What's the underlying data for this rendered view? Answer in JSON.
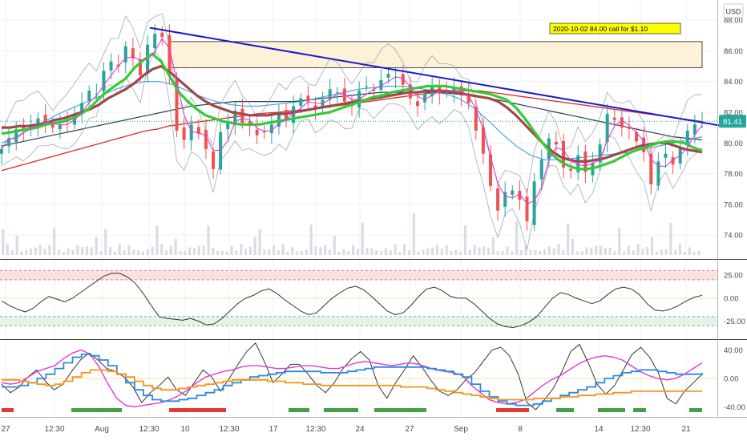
{
  "currency_button": "USD",
  "annotation": "2020-10-02  84.00 call for $1.10",
  "price_badge": "81.41",
  "colors": {
    "grid": "#eef1f6",
    "axis_text": "#4a4a4a",
    "trendline": "#1a1acc",
    "zone_fill": "#fdf1d8",
    "zone_stroke": "#1f1f1f",
    "annotation_bg": "#ffff00",
    "badge_bg": "#26a69a",
    "up_candle": "#26a69a",
    "down_candle": "#ef5350",
    "ma_green": "#33cc33",
    "ma_maroon": "#a0474a",
    "ma_red": "#d42a2a",
    "ma_navy": "#2c3e50",
    "ma_blue": "#3aa3e3",
    "ma_magenta": "#e03ad6",
    "volume": "#d9dde3",
    "cci_line": "#333333",
    "cci_overbought": "#fde0e0",
    "cci_oversold": "#e3f4e6",
    "osc_black": "#222222",
    "osc_magenta": "#e03ad6",
    "osc_blue": "#2a8ae0",
    "osc_orange": "#f7931a",
    "signal_green": "#43a047",
    "signal_red": "#e53935"
  },
  "chart_data": [
    {
      "type": "candlestick",
      "panel": "price",
      "y_ticks": [
        "88.00",
        "86.00",
        "84.00",
        "82.00",
        "80.00",
        "78.00",
        "76.00",
        "74.00"
      ],
      "ylim": [
        72.6,
        89.1
      ],
      "grid": true,
      "x_ticks": [
        "27",
        "12:30",
        "Aug",
        "12:30",
        "10",
        "12:30",
        "17",
        "12:30",
        "24",
        "27",
        "Sep",
        "8",
        "14",
        "12:30",
        "21"
      ],
      "close_series": [
        79.6,
        80.3,
        80.9,
        80.8,
        81.2,
        81.6,
        81.3,
        81.0,
        81.2,
        81.4,
        81.9,
        82.6,
        83.4,
        83.2,
        84.7,
        85.3,
        85.0,
        86.3,
        85.5,
        84.4,
        86.4,
        87.1,
        86.9,
        84.5,
        80.8,
        80.2,
        81.2,
        80.6,
        79.6,
        78.3,
        80.7,
        81.4,
        82.1,
        81.3,
        81.1,
        80.5,
        80.7,
        81.2,
        81.9,
        81.5,
        82.4,
        82.9,
        82.7,
        82.2,
        82.8,
        83.5,
        83.3,
        82.7,
        82.4,
        83.4,
        83.7,
        83.4,
        84.1,
        84.5,
        84.3,
        83.8,
        82.9,
        82.4,
        83.2,
        83.7,
        83.2,
        83.4,
        83.6,
        83.1,
        82.6,
        80.8,
        79.3,
        77.2,
        75.6,
        76.8,
        76.9,
        76.3,
        74.9,
        77.5,
        78.9,
        80.3,
        79.9,
        78.4,
        78.2,
        79.2,
        78.1,
        78.7,
        79.9,
        81.9,
        81.5,
        81.0,
        80.9,
        80.1,
        79.4,
        77.3,
        78.8,
        79.3,
        78.6,
        79.7,
        80.8,
        81.2,
        81.41
      ],
      "moving_averages": {
        "green": [
          80.6,
          80.7,
          80.8,
          80.9,
          81.0,
          81.2,
          81.3,
          81.4,
          81.6,
          81.9,
          82.3,
          82.9,
          83.4,
          83.8,
          84.2,
          84.9,
          85.4,
          85.8,
          85.3,
          84.3,
          83.3,
          82.7,
          82.2,
          81.8,
          81.6,
          81.4,
          81.3,
          81.2,
          81.2,
          81.2,
          81.3,
          81.4,
          81.5,
          81.6,
          81.7,
          81.8,
          81.9,
          82.0,
          82.2,
          82.4,
          82.6,
          82.8,
          83.0,
          83.1,
          83.3,
          83.4,
          83.5,
          83.6,
          83.7,
          83.7,
          83.7,
          83.6,
          83.5,
          83.4,
          83.3,
          83.2,
          83.0,
          82.8,
          82.3,
          81.6,
          80.8,
          80.0,
          79.3,
          78.8,
          78.5,
          78.3,
          78.3,
          78.4,
          78.6,
          78.8,
          79.1,
          79.4,
          79.6,
          79.8,
          80.0,
          80.1,
          80.1,
          80.0,
          79.7,
          79.5
        ],
        "maroon": [
          81.0,
          81.0,
          81.1,
          81.1,
          81.2,
          81.3,
          81.5,
          81.6,
          81.8,
          82.0,
          82.2,
          82.5,
          82.9,
          83.2,
          83.5,
          83.9,
          84.4,
          84.8,
          85.0,
          84.6,
          84.1,
          83.6,
          83.1,
          82.7,
          82.4,
          82.2,
          82.0,
          81.9,
          81.8,
          81.8,
          81.8,
          81.9,
          81.9,
          82.0,
          82.1,
          82.2,
          82.3,
          82.4,
          82.5,
          82.6,
          82.7,
          82.8,
          82.9,
          83.0,
          83.1,
          83.2,
          83.3,
          83.3,
          83.4,
          83.4,
          83.4,
          83.3,
          83.2,
          83.1,
          83.0,
          82.9,
          82.7,
          82.3,
          81.8,
          81.2,
          80.6,
          80.0,
          79.5,
          79.1,
          78.9,
          78.8,
          78.8,
          78.9,
          79.0,
          79.2,
          79.4,
          79.6,
          79.8,
          79.9,
          80.0,
          80.0,
          79.8,
          79.6,
          79.5,
          79.4
        ],
        "red": [
          78.2,
          78.4,
          78.6,
          78.8,
          79.0,
          79.2,
          79.4,
          79.6,
          79.8,
          80.0,
          80.2,
          80.4,
          80.6,
          80.8,
          80.9,
          81.1,
          81.2,
          81.3,
          81.4,
          81.5,
          81.6,
          81.7,
          81.8,
          81.9,
          81.95,
          82.0,
          82.1,
          82.15,
          82.2,
          82.3,
          82.4,
          82.5,
          82.6,
          82.7,
          82.8,
          82.9,
          83.0,
          83.1,
          83.2,
          83.3,
          83.35,
          83.4,
          83.4,
          83.4,
          83.3,
          83.2,
          83.1,
          83.0,
          82.9,
          82.8,
          82.7,
          82.6,
          82.5,
          82.4,
          82.3,
          82.2,
          82.1,
          82.0,
          81.9,
          81.8,
          81.7,
          81.6,
          81.5,
          81.4
        ],
        "navy": [
          79.8,
          80.0,
          80.2,
          80.4,
          80.6,
          80.8,
          81.0,
          81.2,
          81.4,
          81.6,
          81.8,
          82.0,
          82.2,
          82.4,
          82.5,
          82.6,
          82.7,
          82.7,
          82.7,
          82.7,
          82.7,
          82.8,
          82.9,
          83.0,
          83.1,
          83.2,
          83.3,
          83.3,
          83.3,
          83.3,
          83.3,
          83.2,
          83.1,
          83.0,
          82.8,
          82.6,
          82.4,
          82.2,
          82.0,
          81.8,
          81.6,
          81.4,
          81.2,
          81.0,
          80.8,
          80.6,
          80.4,
          80.3,
          80.2
        ],
        "blue": [
          80.0,
          80.4,
          80.9,
          81.4,
          81.9,
          82.3,
          82.7,
          83.1,
          83.5,
          83.8,
          84.0,
          84.0,
          83.8,
          83.4,
          83.0,
          82.7,
          82.5,
          82.4,
          82.4,
          82.5,
          82.6,
          82.7,
          82.9,
          83.1,
          83.3,
          83.5,
          83.6,
          83.7,
          83.7,
          83.6,
          83.4,
          83.2,
          82.9,
          82.3,
          81.5,
          80.6,
          79.8,
          79.2,
          78.9,
          78.9,
          79.0,
          79.1,
          79.2,
          79.3,
          79.4,
          79.6,
          79.8,
          80.0,
          80.2,
          80.4
        ]
      },
      "trendline": [
        {
          "x": "Aug 5",
          "y": 87.5
        },
        {
          "x": "Sep 22",
          "y": 81.1
        }
      ],
      "resistance_zone": [
        84.9,
        86.6
      ],
      "current_price": 81.41
    },
    {
      "type": "line",
      "panel": "cci",
      "y_ticks": [
        "25.00",
        "0.00",
        "-25.00"
      ],
      "ylim": [
        -42,
        40
      ],
      "bands": {
        "overbought": [
          20,
          30
        ],
        "oversold": [
          -30,
          -20
        ]
      },
      "values": [
        -3,
        -8,
        -12,
        -15,
        -11,
        -4,
        2,
        -1,
        -4,
        0,
        6,
        12,
        18,
        24,
        27,
        27,
        23,
        16,
        5,
        -8,
        -20,
        -22,
        -23,
        -24,
        -22,
        -25,
        -29,
        -28,
        -22,
        -14,
        -6,
        0,
        3,
        8,
        10,
        5,
        -2,
        -8,
        -14,
        -18,
        -16,
        -8,
        0,
        6,
        11,
        13,
        9,
        2,
        -6,
        -14,
        -18,
        -16,
        -8,
        2,
        10,
        12,
        8,
        2,
        0,
        0,
        -6,
        -14,
        -22,
        -28,
        -31,
        -32,
        -30,
        -26,
        -20,
        -10,
        0,
        6,
        4,
        0,
        -3,
        -6,
        -3,
        4,
        10,
        12,
        10,
        4,
        -6,
        -13,
        -14,
        -12,
        -8,
        -3,
        1,
        3
      ]
    },
    {
      "type": "line",
      "panel": "oscillators",
      "y_ticks": [
        "40.00",
        "0.00",
        "-40.00"
      ],
      "ylim": [
        -52,
        52
      ],
      "series": [
        {
          "key": "black",
          "values": [
            -8,
            -20,
            -12,
            2,
            12,
            -4,
            -16,
            -8,
            10,
            26,
            36,
            26,
            14,
            10,
            2,
            -12,
            -34,
            -20,
            -10,
            2,
            -16,
            -24,
            -6,
            12,
            2,
            -18,
            0,
            20,
            38,
            50,
            24,
            -6,
            6,
            20,
            20,
            6,
            -10,
            -20,
            -6,
            14,
            28,
            38,
            26,
            -10,
            -28,
            -6,
            12,
            32,
            16,
            -2,
            -18,
            -24,
            -16,
            -2,
            8,
            24,
            40,
            44,
            32,
            6,
            -34,
            -44,
            -30,
            -14,
            10,
            38,
            48,
            22,
            -8,
            -22,
            -10,
            12,
            34,
            44,
            30,
            8,
            -28,
            -36,
            -18,
            -6,
            6
          ]
        },
        {
          "key": "magenta",
          "values": [
            -6,
            -8,
            -6,
            2,
            10,
            14,
            18,
            28,
            36,
            40,
            34,
            16,
            -8,
            -28,
            -38,
            -40,
            -38,
            -36,
            -34,
            -30,
            -24,
            -16,
            -6,
            2,
            6,
            10,
            12,
            16,
            18,
            18,
            16,
            14,
            14,
            16,
            18,
            18,
            16,
            14,
            14,
            18,
            22,
            24,
            22,
            20,
            18,
            20,
            22,
            20,
            16,
            12,
            10,
            8,
            4,
            -10,
            -20,
            -30,
            -34,
            -36,
            -34,
            -30,
            -20,
            -10,
            -2,
            4,
            12,
            20,
            26,
            30,
            32,
            30,
            26,
            18,
            10,
            4,
            0,
            -2,
            0,
            6,
            14,
            22
          ]
        },
        {
          "key": "blue",
          "values": [
            -12,
            -12,
            -10,
            -6,
            0,
            6,
            14,
            22,
            30,
            34,
            32,
            26,
            18,
            6,
            -6,
            -16,
            -24,
            -30,
            -32,
            -32,
            -30,
            -28,
            -24,
            -20,
            -16,
            -10,
            -6,
            -2,
            2,
            4,
            6,
            8,
            10,
            10,
            10,
            10,
            8,
            8,
            8,
            10,
            12,
            14,
            16,
            16,
            16,
            16,
            16,
            16,
            14,
            12,
            10,
            6,
            2,
            -8,
            -18,
            -26,
            -32,
            -36,
            -38,
            -38,
            -36,
            -32,
            -28,
            -24,
            -20,
            -16,
            -12,
            -6,
            0,
            4,
            8,
            10,
            12,
            12,
            10,
            8,
            6,
            6,
            6,
            8
          ]
        },
        {
          "key": "orange",
          "values": [
            -2,
            -2,
            -4,
            -6,
            -8,
            -10,
            -8,
            -4,
            2,
            8,
            12,
            12,
            10,
            6,
            2,
            -4,
            -10,
            -14,
            -16,
            -16,
            -14,
            -12,
            -10,
            -8,
            -6,
            -4,
            -2,
            -2,
            -2,
            -2,
            -4,
            -4,
            -6,
            -6,
            -8,
            -8,
            -10,
            -10,
            -10,
            -10,
            -10,
            -10,
            -10,
            -10,
            -10,
            -12,
            -12,
            -12,
            -14,
            -16,
            -18,
            -20,
            -22,
            -24,
            -26,
            -28,
            -30,
            -30,
            -30,
            -30,
            -28,
            -28,
            -28,
            -26,
            -26,
            -24,
            -24,
            -22,
            -22,
            -20,
            -20,
            -18,
            -18,
            -18,
            -18,
            -18,
            -18,
            -18,
            -18,
            -18
          ]
        }
      ],
      "signals": [
        {
          "start": "Jul 27",
          "end": "Jul 27 12:30",
          "state": "bearish"
        },
        {
          "start": "Jul 30",
          "end": "Aug 3 12:30",
          "state": "bullish"
        },
        {
          "start": "Aug 6",
          "end": "Aug 12",
          "state": "bearish"
        },
        {
          "start": "Aug 17 12:30",
          "end": "Aug 18",
          "state": "bullish"
        },
        {
          "start": "Aug 20",
          "end": "Aug 21",
          "state": "bullish"
        },
        {
          "start": "Aug 24 12:30",
          "end": "Aug 27 12:30",
          "state": "bullish"
        },
        {
          "start": "Sep 4",
          "end": "Sep 8 12:30",
          "state": "bearish"
        },
        {
          "start": "Sep 10",
          "end": "Sep 11",
          "state": "bullish"
        },
        {
          "start": "Sep 14",
          "end": "Sep 15 12:30",
          "state": "bullish"
        },
        {
          "start": "Sep 16 12:30",
          "end": "Sep 17",
          "state": "bullish"
        },
        {
          "start": "Sep 21",
          "end": "Sep 22",
          "state": "bullish"
        }
      ]
    }
  ]
}
